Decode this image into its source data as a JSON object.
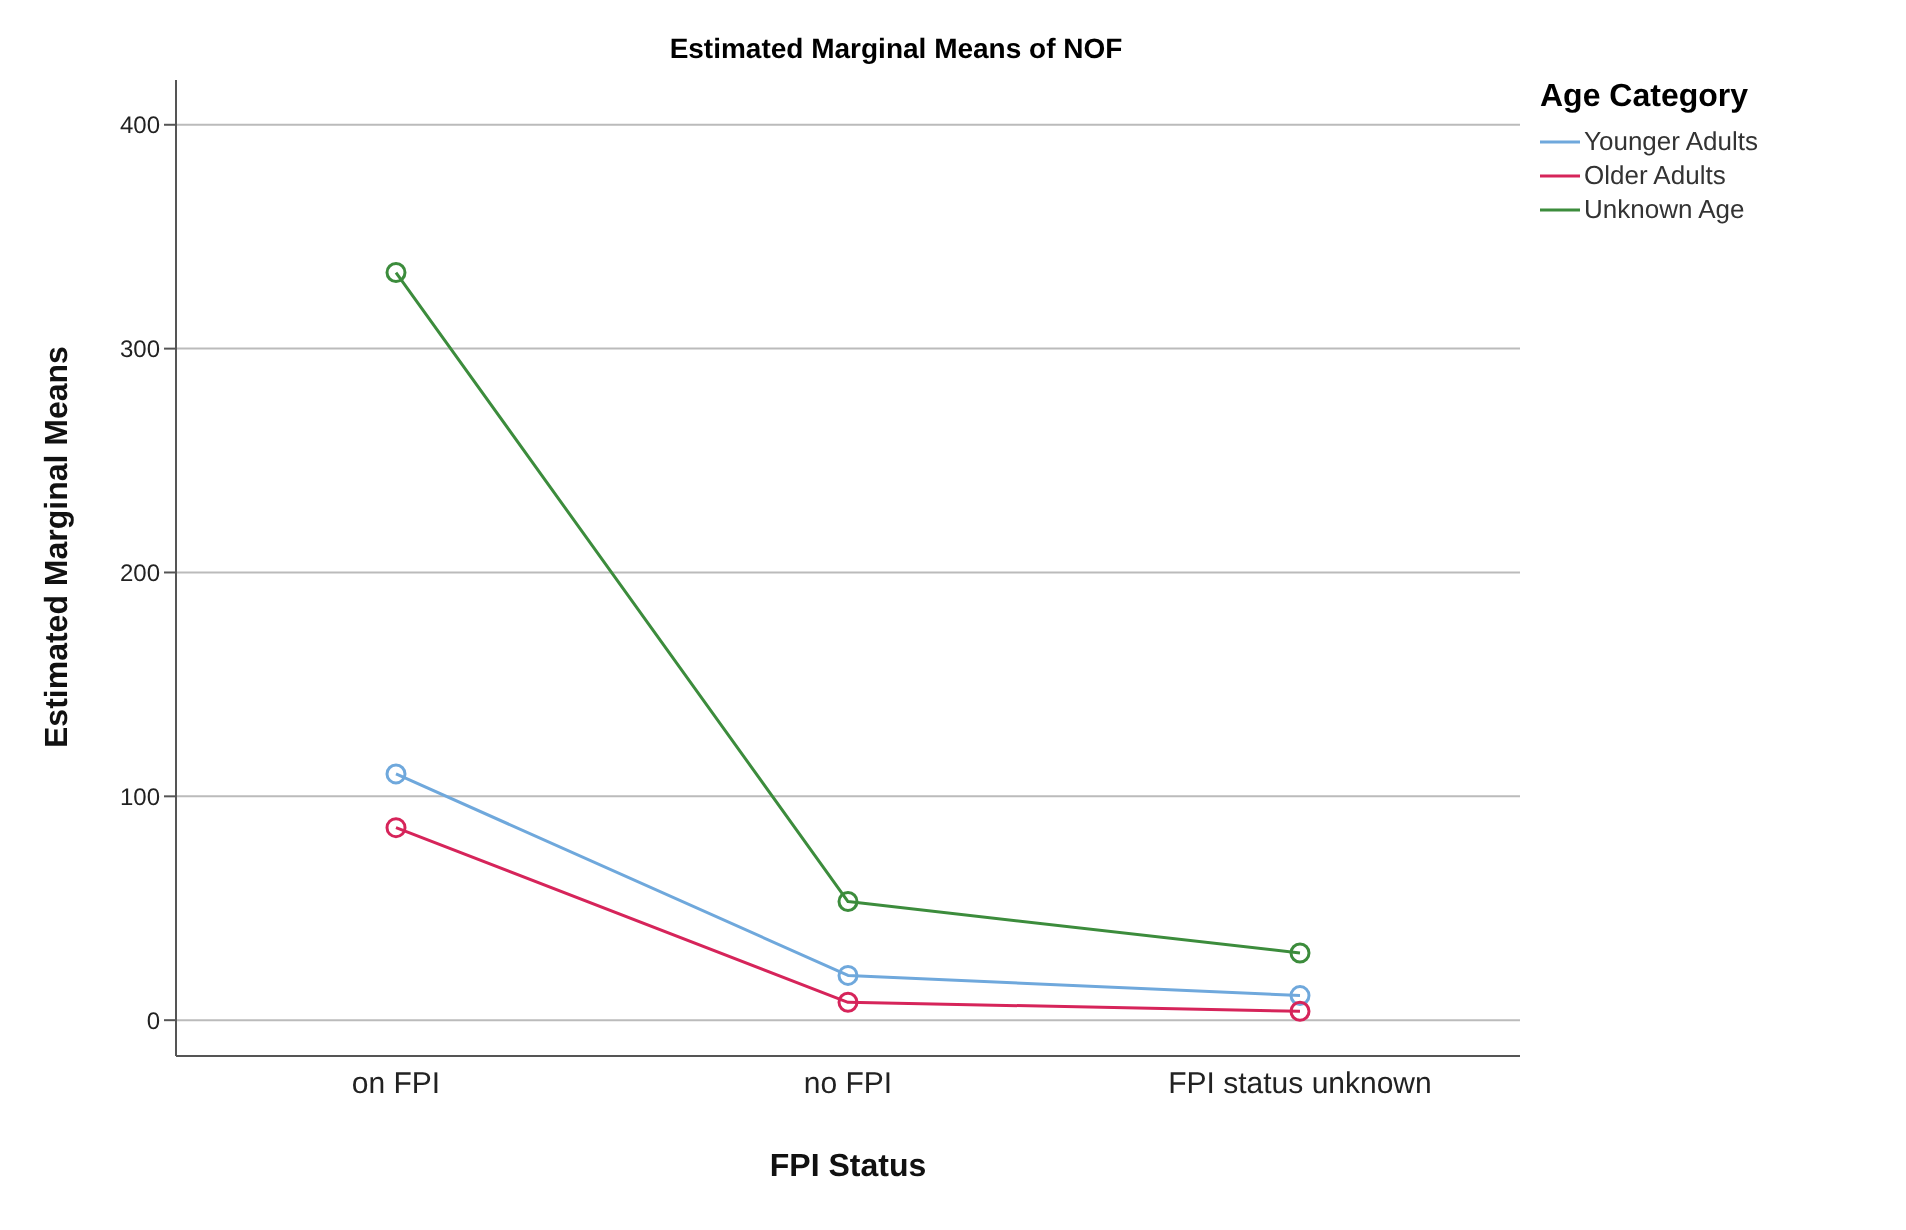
{
  "chart_data": {
    "type": "line",
    "title": "Estimated Marginal Means of NOF",
    "xlabel": "FPI Status",
    "ylabel": "Estimated Marginal Means",
    "legend_title": "Age Category",
    "categories": [
      "on FPI",
      "no FPI",
      "FPI status unknown"
    ],
    "series": [
      {
        "name": "Younger Adults",
        "color": "#6fa8dc",
        "values": [
          110,
          20,
          11
        ]
      },
      {
        "name": "Older Adults",
        "color": "#d6245a",
        "values": [
          86,
          8,
          4
        ]
      },
      {
        "name": "Unknown Age",
        "color": "#3c8c3c",
        "values": [
          334,
          53,
          30
        ]
      }
    ],
    "ylim": [
      -16,
      420
    ],
    "yticks": [
      0,
      100,
      200,
      300,
      400
    ],
    "grid": "y",
    "legend": "top right",
    "marker": "circle",
    "line_style": "solid"
  }
}
